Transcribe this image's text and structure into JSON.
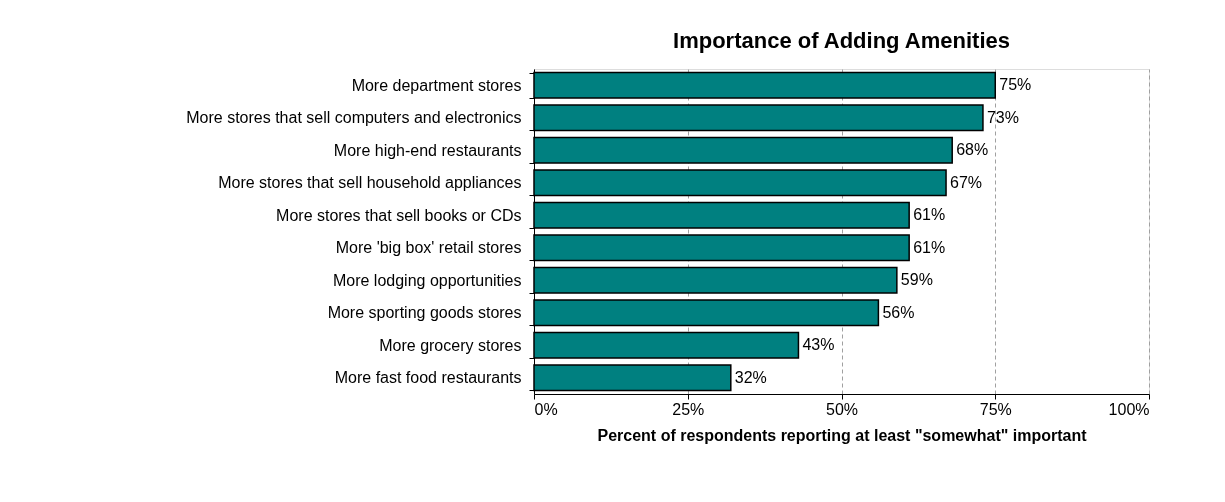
{
  "chart_data": {
    "type": "bar",
    "orientation": "horizontal",
    "title": "Importance of Adding Amenities",
    "xlabel": "Percent of respondents reporting at least \"somewhat\" important",
    "categories": [
      "More department stores",
      "More stores that sell computers and electronics",
      "More high-end restaurants",
      "More stores that sell household appliances",
      "More stores that sell books or CDs",
      "More 'big box' retail stores",
      "More lodging opportunities",
      "More sporting goods stores",
      "More grocery stores",
      "More fast food restaurants"
    ],
    "values": [
      75,
      73,
      68,
      67,
      61,
      61,
      59,
      56,
      43,
      32
    ],
    "value_labels": [
      "75%",
      "73%",
      "68%",
      "67%",
      "61%",
      "61%",
      "59%",
      "56%",
      "43%",
      "32%"
    ],
    "color": "#008080",
    "xlim": [
      0,
      100
    ],
    "xticks": [
      {
        "value": 0,
        "label": "0%"
      },
      {
        "value": 25,
        "label": "25%"
      },
      {
        "value": 50,
        "label": "50%"
      },
      {
        "value": 75,
        "label": "75%"
      },
      {
        "value": 100,
        "label": "100%"
      }
    ],
    "grid": "x"
  }
}
